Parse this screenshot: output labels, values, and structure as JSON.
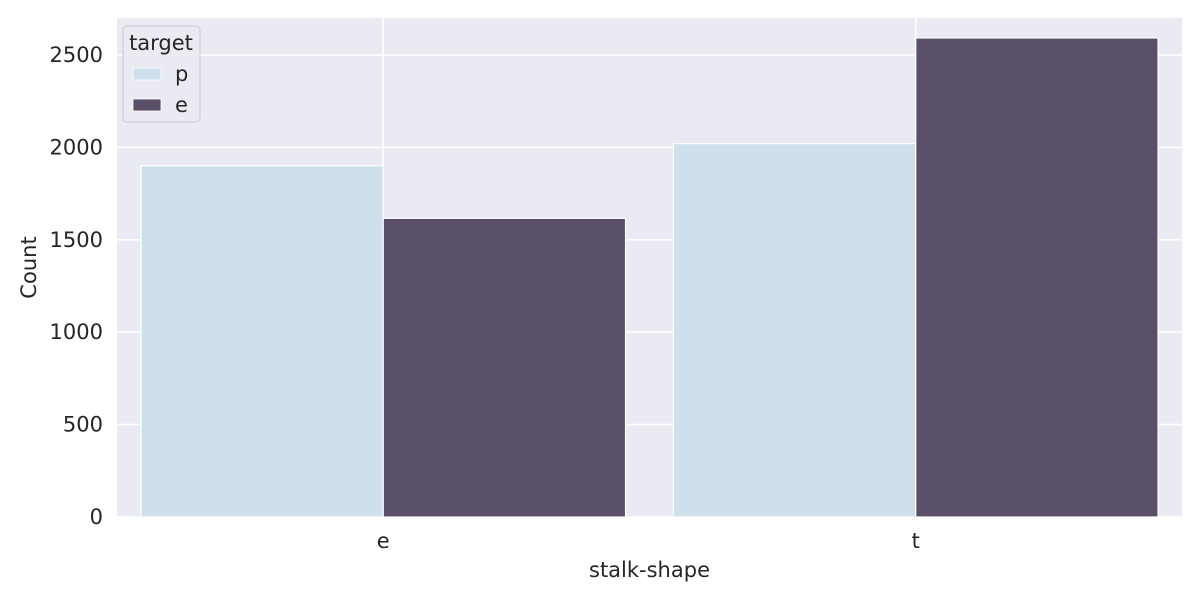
{
  "chart_data": {
    "type": "bar",
    "title": "",
    "xlabel": "stalk-shape",
    "ylabel": "Count",
    "categories": [
      "e",
      "t"
    ],
    "ylim": [
      0,
      2700
    ],
    "yticks": [
      0,
      500,
      1000,
      1500,
      2000,
      2500
    ],
    "grid": true,
    "legend": {
      "title": "target",
      "placement": "top-left"
    },
    "series": [
      {
        "name": "p",
        "color": "#cde0ec",
        "values": [
          1900,
          2020
        ]
      },
      {
        "name": "e",
        "color": "#5a506a",
        "values": [
          1616,
          2592
        ]
      }
    ],
    "background_color": "#eaeaf2"
  }
}
